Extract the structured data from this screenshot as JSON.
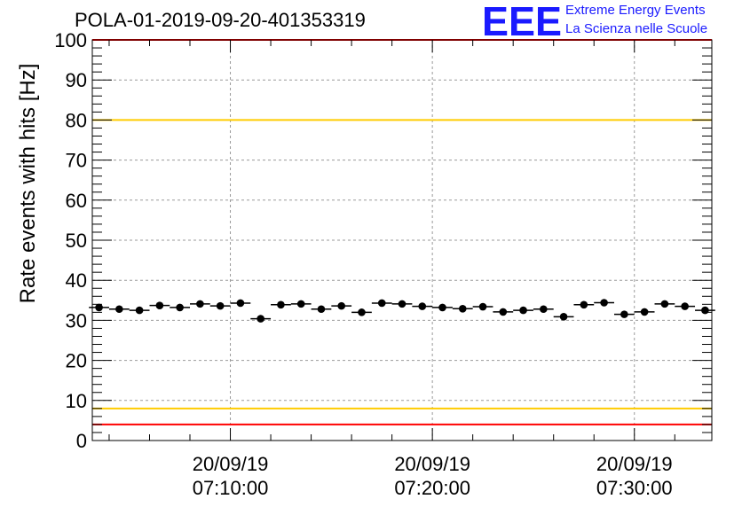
{
  "title": "POLA-01-2019-09-20-401353319",
  "logo": {
    "mark": "EEE",
    "line1": "Extreme Energy Events",
    "line2": "La Scienza nelle Scuole",
    "color": "#1a1aff"
  },
  "chart_data": {
    "type": "scatter",
    "title": "POLA-01-2019-09-20-401353319",
    "xlabel": "",
    "ylabel": "Rate events with hits [Hz]",
    "ylim": [
      0,
      100
    ],
    "yticks": [
      0,
      10,
      20,
      30,
      40,
      50,
      60,
      70,
      80,
      90,
      100
    ],
    "xlim": [
      "07:03:10",
      "07:33:50"
    ],
    "xticks": [
      {
        "date": "20/09/19",
        "time": "07:10:00"
      },
      {
        "date": "20/09/19",
        "time": "07:20:00"
      },
      {
        "date": "20/09/19",
        "time": "07:30:00"
      }
    ],
    "grid": true,
    "reference_lines": [
      {
        "y": 100,
        "color": "#ff0000"
      },
      {
        "y": 80,
        "color": "#ffcc00"
      },
      {
        "y": 8,
        "color": "#ffcc00"
      },
      {
        "y": 4,
        "color": "#ff0000"
      }
    ],
    "bin_width_minutes": 1,
    "series": [
      {
        "x": [
          "07:03:30",
          "07:04:30",
          "07:05:30",
          "07:06:30",
          "07:07:30",
          "07:08:30",
          "07:09:30",
          "07:10:30",
          "07:11:30",
          "07:12:30",
          "07:13:30",
          "07:14:30",
          "07:15:30",
          "07:16:30",
          "07:17:30",
          "07:18:30",
          "07:19:30",
          "07:20:30",
          "07:21:30",
          "07:22:30",
          "07:23:30",
          "07:24:30",
          "07:25:30",
          "07:26:30",
          "07:27:30",
          "07:28:30",
          "07:29:30",
          "07:30:30",
          "07:31:30",
          "07:32:30",
          "07:33:30"
        ],
        "y": [
          33.2,
          32.8,
          32.5,
          33.7,
          33.2,
          34.1,
          33.6,
          34.3,
          30.4,
          33.9,
          34.1,
          32.8,
          33.6,
          32.0,
          34.3,
          34.1,
          33.5,
          33.2,
          32.9,
          33.4,
          32.1,
          32.5,
          32.8,
          30.9,
          33.9,
          34.4,
          31.5,
          32.1,
          34.1,
          33.5,
          32.5
        ],
        "color": "#000000"
      }
    ]
  }
}
